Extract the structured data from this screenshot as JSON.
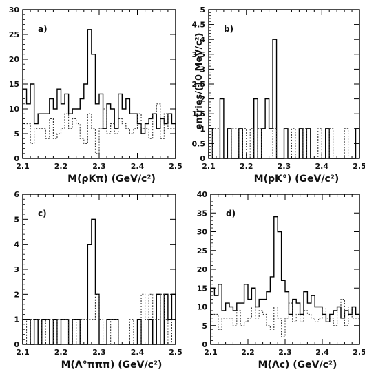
{
  "figure": {
    "ylabel": "entries/(10 MeV/c²)"
  },
  "chart_data": [
    {
      "type": "step",
      "panel": "a)",
      "xlabel": "M(ρKπ) (GeV/c²)",
      "ylabel": "",
      "xlim": [
        2.1,
        2.5
      ],
      "ylim": [
        0,
        30
      ],
      "xticks": [
        2.1,
        2.2,
        2.3,
        2.4,
        2.5
      ],
      "xtick_labels": [
        "2.1",
        "2.2",
        "2.3",
        "2.4",
        "2.5"
      ],
      "yticks": [
        0,
        5,
        10,
        15,
        20,
        25,
        30
      ],
      "ytick_labels": [
        "0",
        "5",
        "10",
        "15",
        "20",
        "25",
        "30"
      ],
      "bin_edges": [
        2.1,
        2.11,
        2.12,
        2.13,
        2.14,
        2.15,
        2.16,
        2.17,
        2.18,
        2.19,
        2.2,
        2.21,
        2.22,
        2.23,
        2.24,
        2.25,
        2.26,
        2.27,
        2.28,
        2.29,
        2.3,
        2.31,
        2.32,
        2.33,
        2.34,
        2.35,
        2.36,
        2.37,
        2.38,
        2.39,
        2.4,
        2.41,
        2.42,
        2.43,
        2.44,
        2.45,
        2.46,
        2.47,
        2.48,
        2.49,
        2.5
      ],
      "series": [
        {
          "style": "solid",
          "values": [
            14,
            11,
            15,
            7,
            9,
            9,
            9,
            12,
            10,
            14,
            11,
            13,
            9,
            10,
            10,
            12,
            15,
            26,
            21,
            11,
            13,
            6,
            11,
            10,
            6,
            13,
            10,
            12,
            9,
            9,
            7,
            5,
            7,
            8,
            9,
            6,
            8,
            7,
            9,
            7
          ]
        },
        {
          "style": "dotted",
          "values": [
            7,
            7,
            3,
            6,
            6,
            6,
            4,
            8,
            4,
            5,
            6,
            9,
            6,
            8,
            7,
            4,
            3,
            9,
            6,
            1,
            6,
            10,
            5,
            7,
            5,
            8,
            7,
            6,
            5,
            6,
            9,
            6,
            6,
            4,
            9,
            11,
            4,
            9,
            6,
            6
          ]
        }
      ]
    },
    {
      "type": "step",
      "panel": "b)",
      "xlabel": "M(pK°) (GeV/c²)",
      "ylabel": "entries/(10 MeV/c²)",
      "xlim": [
        2.1,
        2.5
      ],
      "ylim": [
        0,
        5
      ],
      "xticks": [
        2.1,
        2.2,
        2.3,
        2.4,
        2.5
      ],
      "xtick_labels": [
        "2.1",
        "2.2",
        "2.3",
        "2.4",
        "2.5"
      ],
      "yticks": [
        0,
        0.5,
        1,
        1.5,
        2,
        2.5,
        3,
        3.5,
        4,
        4.5,
        5
      ],
      "ytick_labels": [
        "0",
        "0.5",
        "1",
        "1.5",
        "2",
        "2.5",
        "3",
        "3.5",
        "4",
        "4.5",
        "5"
      ],
      "bin_edges": [
        2.1,
        2.11,
        2.12,
        2.13,
        2.14,
        2.15,
        2.16,
        2.17,
        2.18,
        2.19,
        2.2,
        2.21,
        2.22,
        2.23,
        2.24,
        2.25,
        2.26,
        2.27,
        2.28,
        2.29,
        2.3,
        2.31,
        2.32,
        2.33,
        2.34,
        2.35,
        2.36,
        2.37,
        2.38,
        2.39,
        2.4,
        2.41,
        2.42,
        2.43,
        2.44,
        2.45,
        2.46,
        2.47,
        2.48,
        2.49,
        2.5
      ],
      "series": [
        {
          "style": "solid",
          "values": [
            1,
            0,
            0,
            2,
            0,
            1,
            0,
            0,
            1,
            0,
            0,
            0,
            2,
            0,
            1,
            2,
            1,
            4,
            0,
            0,
            1,
            0,
            0,
            0,
            1,
            0,
            1,
            0,
            0,
            0,
            0,
            1,
            0,
            0,
            0,
            0,
            0,
            0,
            0,
            1
          ]
        },
        {
          "style": "dotted",
          "values": [
            0,
            1,
            1,
            0,
            0,
            0,
            1,
            1,
            0,
            1,
            0,
            1,
            0,
            1,
            0,
            0,
            0,
            1,
            0,
            0,
            0,
            0,
            1,
            0,
            0,
            1,
            0,
            0,
            0,
            1,
            0,
            0,
            1,
            0,
            0,
            0,
            1,
            0,
            0,
            0
          ]
        }
      ]
    },
    {
      "type": "step",
      "panel": "c)",
      "xlabel": "M(Λ°πππ) (GeV/c²)",
      "ylabel": "",
      "xlim": [
        2.1,
        2.5
      ],
      "ylim": [
        0,
        6
      ],
      "xticks": [
        2.1,
        2.2,
        2.3,
        2.4,
        2.5
      ],
      "xtick_labels": [
        "2.1",
        "2.2",
        "2.3",
        "2.4",
        "2.5"
      ],
      "yticks": [
        0,
        1,
        2,
        3,
        4,
        5,
        6
      ],
      "ytick_labels": [
        "0",
        "1",
        "2",
        "3",
        "4",
        "5",
        "6"
      ],
      "bin_edges": [
        2.1,
        2.11,
        2.12,
        2.13,
        2.14,
        2.15,
        2.16,
        2.17,
        2.18,
        2.19,
        2.2,
        2.21,
        2.22,
        2.23,
        2.24,
        2.25,
        2.26,
        2.27,
        2.28,
        2.29,
        2.3,
        2.31,
        2.32,
        2.33,
        2.34,
        2.35,
        2.36,
        2.37,
        2.38,
        2.39,
        2.4,
        2.41,
        2.42,
        2.43,
        2.44,
        2.45,
        2.46,
        2.47,
        2.48,
        2.49,
        2.5
      ],
      "series": [
        {
          "style": "solid",
          "values": [
            1,
            1,
            0,
            1,
            0,
            1,
            1,
            0,
            1,
            0,
            1,
            1,
            0,
            1,
            1,
            0,
            0,
            4,
            5,
            2,
            0,
            0,
            1,
            1,
            1,
            0,
            0,
            0,
            0,
            0,
            1,
            0,
            0,
            1,
            0,
            2,
            0,
            2,
            1,
            2
          ]
        },
        {
          "style": "dotted",
          "values": [
            1,
            0,
            1,
            1,
            1,
            0,
            1,
            1,
            0,
            1,
            1,
            1,
            0,
            1,
            0,
            1,
            1,
            1,
            1,
            2,
            1,
            0,
            0,
            1,
            1,
            0,
            0,
            0,
            1,
            0,
            0,
            2,
            1,
            2,
            1,
            1,
            2,
            1,
            0,
            1
          ]
        }
      ]
    },
    {
      "type": "step",
      "panel": "d)",
      "xlabel": "M(Λc) (GeV/c²)",
      "ylabel": "",
      "xlim": [
        2.1,
        2.5
      ],
      "ylim": [
        0,
        40
      ],
      "xticks": [
        2.1,
        2.2,
        2.3,
        2.4,
        2.5
      ],
      "xtick_labels": [
        "2.1",
        "2.2",
        "2.3",
        "2.4",
        "2.5"
      ],
      "yticks": [
        0,
        5,
        10,
        15,
        20,
        25,
        30,
        35,
        40
      ],
      "ytick_labels": [
        "0",
        "5",
        "10",
        "15",
        "20",
        "25",
        "30",
        "35",
        "40"
      ],
      "bin_edges": [
        2.1,
        2.11,
        2.12,
        2.13,
        2.14,
        2.15,
        2.16,
        2.17,
        2.18,
        2.19,
        2.2,
        2.21,
        2.22,
        2.23,
        2.24,
        2.25,
        2.26,
        2.27,
        2.28,
        2.29,
        2.3,
        2.31,
        2.32,
        2.33,
        2.34,
        2.35,
        2.36,
        2.37,
        2.38,
        2.39,
        2.4,
        2.41,
        2.42,
        2.43,
        2.44,
        2.45,
        2.46,
        2.47,
        2.48,
        2.49,
        2.5
      ],
      "series": [
        {
          "style": "solid",
          "values": [
            15,
            13,
            16,
            9,
            11,
            10,
            9,
            11,
            11,
            16,
            12,
            15,
            10,
            12,
            12,
            14,
            18,
            34,
            30,
            17,
            14,
            8,
            12,
            11,
            8,
            14,
            11,
            13,
            10,
            10,
            8,
            6,
            8,
            9,
            10,
            7,
            9,
            8,
            10,
            8
          ]
        },
        {
          "style": "dotted",
          "values": [
            8,
            8,
            4,
            7,
            7,
            7,
            5,
            9,
            5,
            6,
            7,
            10,
            7,
            9,
            8,
            5,
            4,
            10,
            7,
            2,
            7,
            11,
            6,
            8,
            6,
            9,
            8,
            7,
            6,
            7,
            10,
            7,
            7,
            5,
            10,
            12,
            5,
            10,
            7,
            7
          ]
        }
      ]
    }
  ]
}
